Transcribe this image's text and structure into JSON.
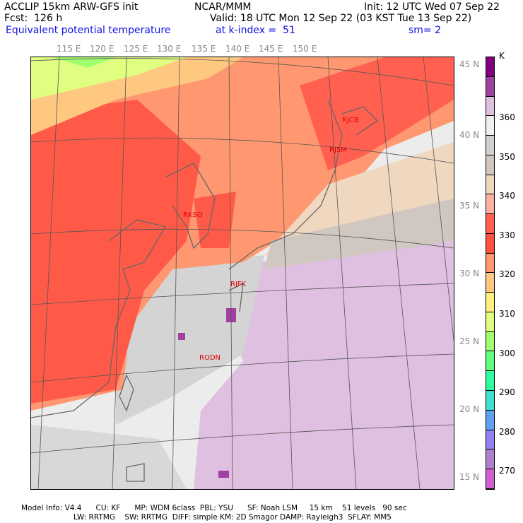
{
  "header": {
    "title": "ACCLIP 15km ARW-GFS init",
    "center": "NCAR/MMM",
    "init": "Init: 12 UTC Wed 07 Sep 22",
    "fcst": "Fcst:  126 h",
    "valid": "Valid: 18 UTC Mon 12 Sep 22 (03 KST Tue 13 Sep 22)",
    "field": "Equivalent potential temperature",
    "level": "at k-index =  51",
    "smooth": "sm= 2"
  },
  "lon_labels": [
    "115 E",
    "120 E",
    "125 E",
    "130 E",
    "135 E",
    "140 E",
    "145 E",
    "150 E"
  ],
  "lat_labels": [
    "45 N",
    "40 N",
    "35 N",
    "30 N",
    "25 N",
    "20 N",
    "15 N"
  ],
  "stations": [
    "RJCB",
    "RJSM",
    "RKSO",
    "RJFK",
    "RODN"
  ],
  "colorbar": {
    "unit": "K",
    "labels": [
      "360",
      "350",
      "340",
      "330",
      "320",
      "310",
      "300",
      "290",
      "280",
      "270"
    ],
    "colors": [
      "#800080",
      "#a040a0",
      "#e0c0e0",
      "#f0f0f0",
      "#d0d0d0",
      "#d0c8c0",
      "#f0d8c0",
      "#ffb0a0",
      "#ff6050",
      "#ff5040",
      "#ff9870",
      "#ffc880",
      "#fff080",
      "#e0ff80",
      "#a0ff70",
      "#60ff80",
      "#30ffa0",
      "#40e0d0",
      "#60a0f0",
      "#9080f0",
      "#b080d0",
      "#d060d0"
    ]
  },
  "footer": {
    "line1": "Model Info: V4.4      CU: KF      MP: WDM 6class  PBL: YSU      SF: Noah LSM     15 km    51 levels   90 sec",
    "line2": "LW: RRTMG    SW: RRTMG  DIFF: simple KM: 2D Smagor DAMP: Rayleigh3  SFLAY: MM5"
  }
}
